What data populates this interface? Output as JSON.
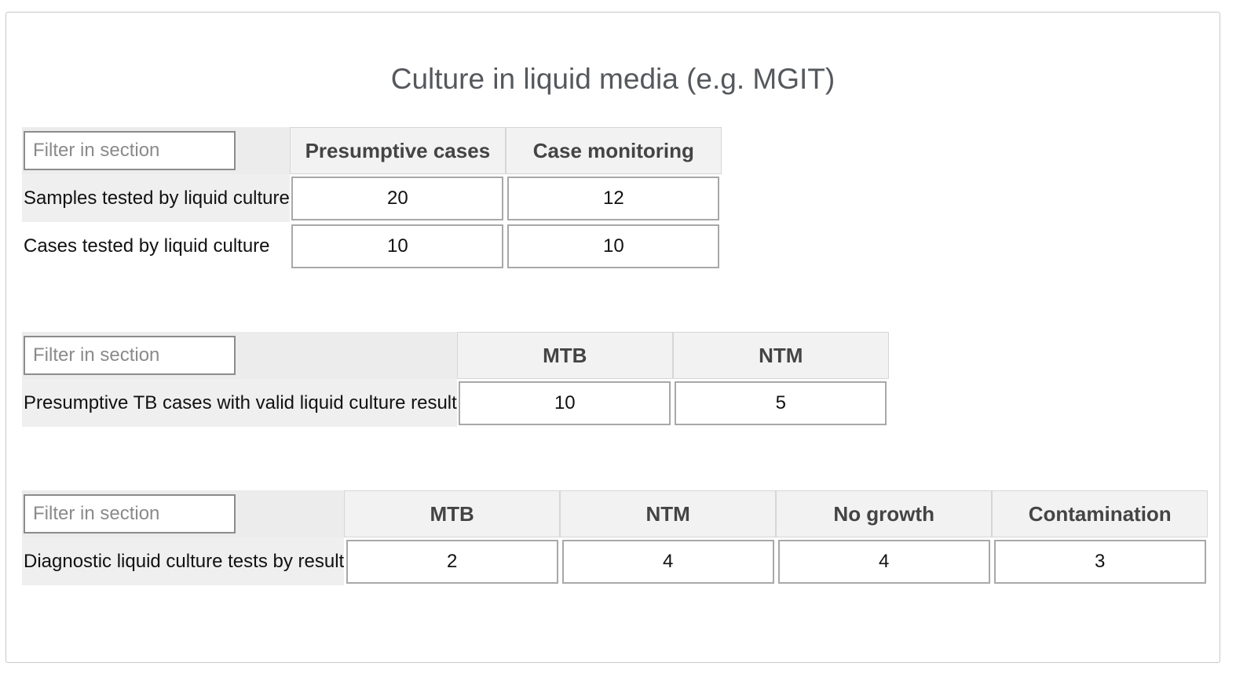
{
  "title": "Culture in liquid media (e.g. MGIT)",
  "sections": [
    {
      "filter_placeholder": "Filter in section",
      "columns": [
        "Presumptive cases",
        "Case monitoring"
      ],
      "rows": [
        {
          "label": "Samples tested by liquid culture",
          "values": [
            "20",
            "12"
          ]
        },
        {
          "label": "Cases tested by liquid culture",
          "values": [
            "10",
            "10"
          ]
        }
      ]
    },
    {
      "filter_placeholder": "Filter in section",
      "columns": [
        "MTB",
        "NTM"
      ],
      "rows": [
        {
          "label": "Presumptive TB cases with valid liquid culture result",
          "values": [
            "10",
            "5"
          ]
        }
      ]
    },
    {
      "filter_placeholder": "Filter in section",
      "columns": [
        "MTB",
        "NTM",
        "No growth",
        "Contamination"
      ],
      "rows": [
        {
          "label": "Diagnostic liquid culture tests by result",
          "values": [
            "2",
            "4",
            "4",
            "3"
          ]
        }
      ]
    }
  ]
}
